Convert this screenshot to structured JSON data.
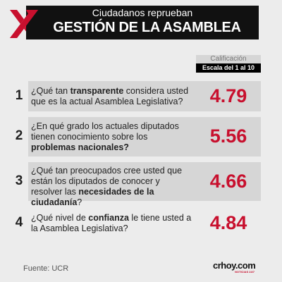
{
  "header": {
    "subtitle": "Ciudadanos reprueban",
    "title": "GESTIÓN DE LA ASAMBLEA"
  },
  "score_header": {
    "label": "Calificación",
    "scale": "Escala del 1 al 10"
  },
  "items": [
    {
      "number": 1,
      "segments": [
        {
          "text": "¿Qué tan ",
          "bold": false
        },
        {
          "text": "transparente",
          "bold": true
        },
        {
          "text": " considera usted que es la actual Asamblea Legislativa?",
          "bold": false
        }
      ],
      "score": 4.79,
      "shaded": true
    },
    {
      "number": 2,
      "segments": [
        {
          "text": "¿En qué grado los actuales diputados tienen conocimiento sobre los ",
          "bold": false
        },
        {
          "text": "problemas nacionales?",
          "bold": true
        }
      ],
      "score": 5.56,
      "shaded": true
    },
    {
      "number": 3,
      "segments": [
        {
          "text": "¿Qué tan preocupados cree usted que están los diputados de conocer y resolver las ",
          "bold": false
        },
        {
          "text": "necesidades de la ciudadanía",
          "bold": true
        },
        {
          "text": "?",
          "bold": false
        }
      ],
      "score": 4.66,
      "shaded": true
    },
    {
      "number": 4,
      "segments": [
        {
          "text": "¿Qué nivel de ",
          "bold": false
        },
        {
          "text": "confianza",
          "bold": true
        },
        {
          "text": " le tiene usted a la Asamblea Legislativa?",
          "bold": false
        }
      ],
      "score": 4.84,
      "shaded": false
    }
  ],
  "footer": {
    "source": "Fuente: UCR",
    "logo": "crhoy.com",
    "tagline": "NOTICIAS 24/7"
  }
}
